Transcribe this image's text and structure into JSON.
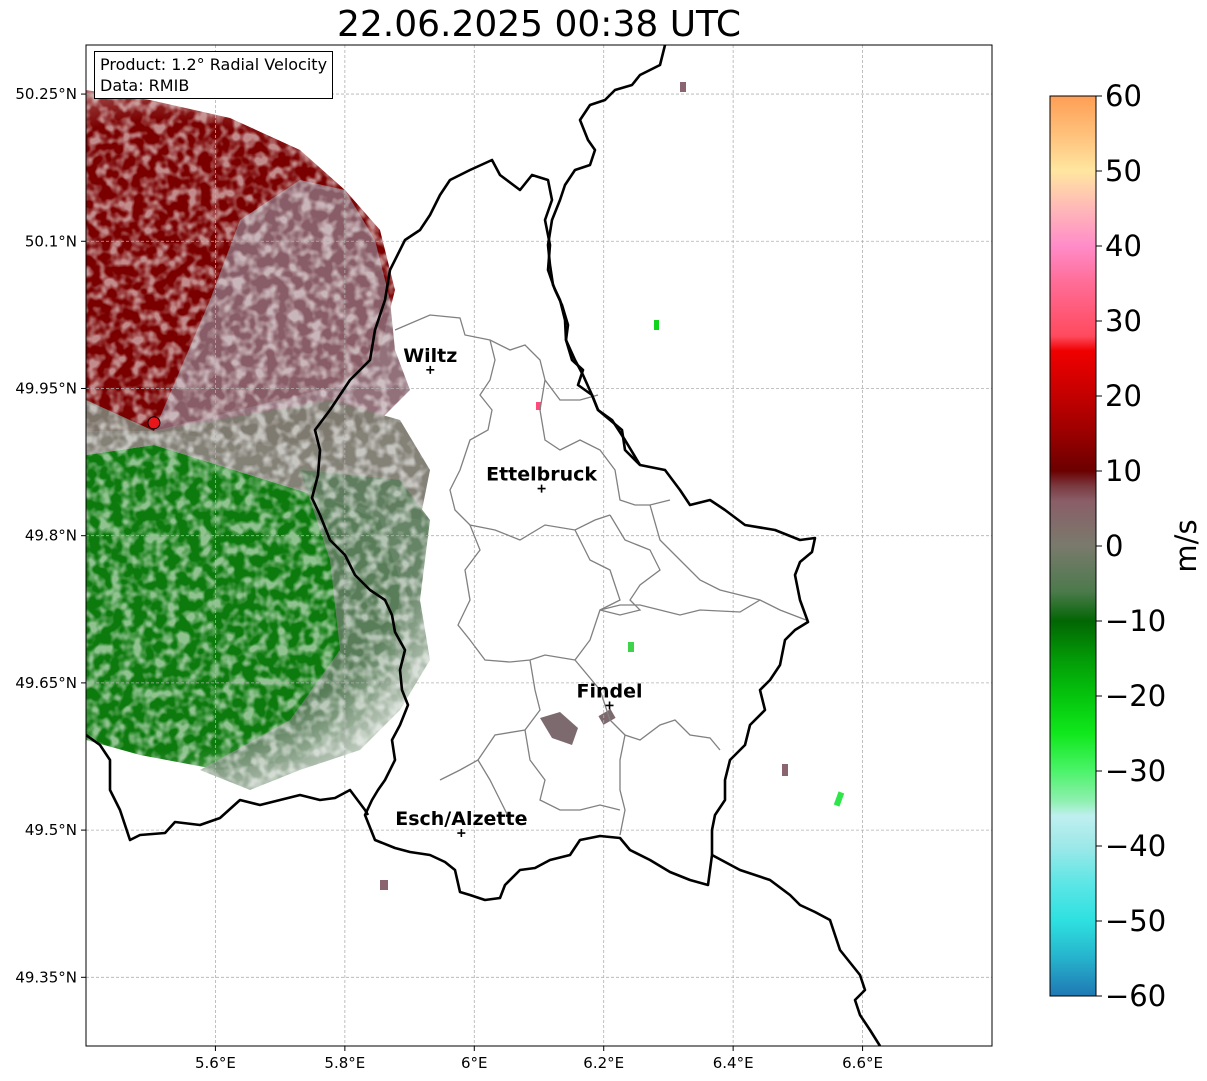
{
  "title": "22.06.2025 00:38 UTC",
  "info_box": {
    "product": "Product: 1.2° Radial Velocity",
    "data_source": "Data: RMIB"
  },
  "map": {
    "lon_range": [
      5.4,
      6.8
    ],
    "lat_range": [
      49.28,
      50.3
    ],
    "lon_ticks": [
      {
        "value": 5.6,
        "label": "5.6°E"
      },
      {
        "value": 5.8,
        "label": "5.8°E"
      },
      {
        "value": 6.0,
        "label": "6°E"
      },
      {
        "value": 6.2,
        "label": "6.2°E"
      },
      {
        "value": 6.4,
        "label": "6.4°E"
      },
      {
        "value": 6.6,
        "label": "6.6°E"
      }
    ],
    "lat_ticks": [
      {
        "value": 50.25,
        "label": "50.25°N"
      },
      {
        "value": 50.1,
        "label": "50.1°N"
      },
      {
        "value": 49.95,
        "label": "49.95°N"
      },
      {
        "value": 49.8,
        "label": "49.8°N"
      },
      {
        "value": 49.65,
        "label": "49.65°N"
      },
      {
        "value": 49.5,
        "label": "49.5°N"
      },
      {
        "value": 49.35,
        "label": "49.35°N"
      }
    ],
    "gridlines": true,
    "radar_site": {
      "lon": 5.505,
      "lat": 49.915,
      "color": "#e8151b"
    },
    "cities": [
      {
        "name": "Wiltz",
        "lon": 5.932,
        "lat": 49.969
      },
      {
        "name": "Ettelbruck",
        "lon": 6.104,
        "lat": 49.848
      },
      {
        "name": "Findel",
        "lon": 6.209,
        "lat": 49.627
      },
      {
        "name": "Esch/Alzette",
        "lon": 5.98,
        "lat": 49.497
      }
    ]
  },
  "colorbar": {
    "label": "m/s",
    "min": -60,
    "max": 60,
    "ticks": [
      60,
      50,
      40,
      30,
      20,
      10,
      0,
      -10,
      -20,
      -30,
      -40,
      -50,
      -60
    ],
    "tick_labels": [
      "60",
      "50",
      "40",
      "30",
      "20",
      "10",
      "0",
      "−10",
      "−20",
      "−30",
      "−40",
      "−50",
      "−60"
    ],
    "color_stops": [
      {
        "value": -60,
        "color": "#1f78b4"
      },
      {
        "value": -55,
        "color": "#26b2cc"
      },
      {
        "value": -50,
        "color": "#2ee0e0"
      },
      {
        "value": -45,
        "color": "#5ce6e6"
      },
      {
        "value": -40,
        "color": "#9ee8e8"
      },
      {
        "value": -36,
        "color": "#bfeff0"
      },
      {
        "value": -34,
        "color": "#8ff0b0"
      },
      {
        "value": -30,
        "color": "#4cf36a"
      },
      {
        "value": -25,
        "color": "#10e81c"
      },
      {
        "value": -20,
        "color": "#05c40d"
      },
      {
        "value": -15,
        "color": "#039a07"
      },
      {
        "value": -10,
        "color": "#026603"
      },
      {
        "value": -6,
        "color": "#4d7a4d"
      },
      {
        "value": 0,
        "color": "#7a7a6c"
      },
      {
        "value": 6,
        "color": "#8a5e68"
      },
      {
        "value": 8,
        "color": "#7a3a40"
      },
      {
        "value": 10,
        "color": "#6b0000"
      },
      {
        "value": 15,
        "color": "#9a0000"
      },
      {
        "value": 20,
        "color": "#c40000"
      },
      {
        "value": 26,
        "color": "#f00000"
      },
      {
        "value": 28,
        "color": "#ff4a5e"
      },
      {
        "value": 35,
        "color": "#ff6c96"
      },
      {
        "value": 40,
        "color": "#ff8cc8"
      },
      {
        "value": 45,
        "color": "#ffb8b8"
      },
      {
        "value": 50,
        "color": "#ffe6a0"
      },
      {
        "value": 55,
        "color": "#ffc07a"
      },
      {
        "value": 60,
        "color": "#ff9e55"
      }
    ]
  },
  "colors": {
    "positive_velocity": "#7a0000",
    "near_zero_velocity": "#7f6a72",
    "negative_velocity": "#0a7a0a",
    "border": "#000000",
    "canton_boundary": "#808080"
  }
}
